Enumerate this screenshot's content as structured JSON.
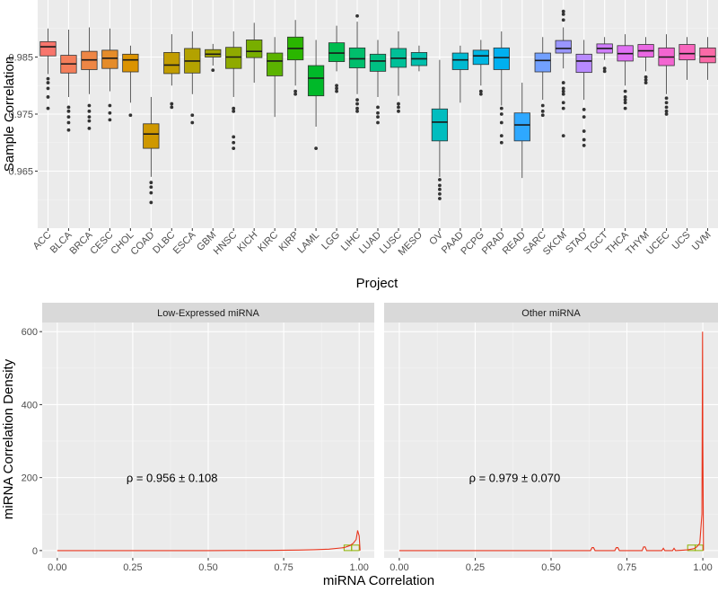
{
  "chart_data": [
    {
      "type": "boxplot",
      "title": "",
      "xlabel": "Project",
      "ylabel": "Sample Correlation",
      "ylim": [
        0.955,
        0.995
      ],
      "yticks": [
        0.965,
        0.975,
        0.985
      ],
      "ytick_labels": [
        "0.965",
        "0.975",
        "0.985"
      ],
      "grid": true,
      "legend": "none",
      "categories": [
        "ACC",
        "BLCA",
        "BRCA",
        "CESC",
        "CHOL",
        "COAD",
        "DLBC",
        "ESCA",
        "GBM",
        "HNSC",
        "KICH",
        "KIRC",
        "KIRP",
        "LAML",
        "LGG",
        "LIHC",
        "LUAD",
        "LUSC",
        "MESO",
        "OV",
        "PAAD",
        "PCPG",
        "PRAD",
        "READ",
        "SARC",
        "SKCM",
        "STAD",
        "TGCT",
        "THCA",
        "THYM",
        "UCEC",
        "UCS",
        "UVM"
      ],
      "colors": [
        "#F8766D",
        "#F47E5A",
        "#EE8645",
        "#E58C2A",
        "#DB9300",
        "#CF9800",
        "#C29D00",
        "#B3A200",
        "#A3A500",
        "#8FAA00",
        "#78AE00",
        "#5BB300",
        "#2AB600",
        "#00B929",
        "#00BC4F",
        "#00BE6C",
        "#00C083",
        "#00C098",
        "#00BFAC",
        "#00BDBF",
        "#00BAD1",
        "#00B6E2",
        "#00B0F0",
        "#2EA8FF",
        "#72A0FF",
        "#9A96FF",
        "#B88AFF",
        "#D07DFF",
        "#E070F4",
        "#EA68E3",
        "#F365D1",
        "#F866BD",
        "#FB6AA7"
      ],
      "boxes": [
        {
          "min": 0.982,
          "q1": 0.9852,
          "median": 0.9868,
          "q3": 0.9877,
          "max": 0.99,
          "outliers": [
            0.9812,
            0.9805,
            0.9795,
            0.978,
            0.976
          ]
        },
        {
          "min": 0.978,
          "q1": 0.9822,
          "median": 0.9838,
          "q3": 0.9853,
          "max": 0.9898,
          "outliers": [
            0.9762,
            0.9755,
            0.9745,
            0.9735,
            0.9722
          ]
        },
        {
          "min": 0.9785,
          "q1": 0.9828,
          "median": 0.9845,
          "q3": 0.986,
          "max": 0.9902,
          "outliers": [
            0.9765,
            0.9755,
            0.9745,
            0.9738,
            0.9725
          ]
        },
        {
          "min": 0.979,
          "q1": 0.983,
          "median": 0.9848,
          "q3": 0.9862,
          "max": 0.99,
          "outliers": [
            0.9765,
            0.9752,
            0.974
          ]
        },
        {
          "min": 0.977,
          "q1": 0.9824,
          "median": 0.9845,
          "q3": 0.9855,
          "max": 0.987,
          "outliers": [
            0.9748
          ]
        },
        {
          "min": 0.964,
          "q1": 0.969,
          "median": 0.9715,
          "q3": 0.9733,
          "max": 0.978,
          "outliers": [
            0.963,
            0.9622,
            0.9612,
            0.9595
          ]
        },
        {
          "min": 0.98,
          "q1": 0.9821,
          "median": 0.9836,
          "q3": 0.9858,
          "max": 0.989,
          "outliers": [
            0.9768,
            0.9762
          ]
        },
        {
          "min": 0.9785,
          "q1": 0.9822,
          "median": 0.9843,
          "q3": 0.9865,
          "max": 0.9895,
          "outliers": [
            0.9748,
            0.9735
          ]
        },
        {
          "min": 0.9835,
          "q1": 0.985,
          "median": 0.9855,
          "q3": 0.9863,
          "max": 0.9873,
          "outliers": [
            0.9827
          ]
        },
        {
          "min": 0.978,
          "q1": 0.983,
          "median": 0.985,
          "q3": 0.9867,
          "max": 0.9895,
          "outliers": [
            0.976,
            0.9755,
            0.971,
            0.97,
            0.969
          ]
        },
        {
          "min": 0.9805,
          "q1": 0.9849,
          "median": 0.986,
          "q3": 0.988,
          "max": 0.991,
          "outliers": []
        },
        {
          "min": 0.9745,
          "q1": 0.9817,
          "median": 0.9843,
          "q3": 0.9857,
          "max": 0.9885,
          "outliers": []
        },
        {
          "min": 0.98,
          "q1": 0.9845,
          "median": 0.9865,
          "q3": 0.9885,
          "max": 0.9915,
          "outliers": [
            0.979,
            0.9785
          ]
        },
        {
          "min": 0.9728,
          "q1": 0.9782,
          "median": 0.9813,
          "q3": 0.9835,
          "max": 0.988,
          "outliers": [
            0.969
          ]
        },
        {
          "min": 0.9825,
          "q1": 0.9842,
          "median": 0.9857,
          "q3": 0.9875,
          "max": 0.9905,
          "outliers": [
            0.98,
            0.9795,
            0.979
          ]
        },
        {
          "min": 0.9785,
          "q1": 0.9831,
          "median": 0.9847,
          "q3": 0.9866,
          "max": 0.9912,
          "outliers": [
            0.9775,
            0.9768,
            0.976,
            0.9755,
            0.9922
          ]
        },
        {
          "min": 0.978,
          "q1": 0.9825,
          "median": 0.9843,
          "q3": 0.9855,
          "max": 0.988,
          "outliers": [
            0.9762,
            0.9752,
            0.9745,
            0.9735
          ]
        },
        {
          "min": 0.9782,
          "q1": 0.9832,
          "median": 0.9848,
          "q3": 0.9865,
          "max": 0.9895,
          "outliers": [
            0.9768,
            0.9762,
            0.9755
          ]
        },
        {
          "min": 0.9825,
          "q1": 0.9835,
          "median": 0.9847,
          "q3": 0.9858,
          "max": 0.987,
          "outliers": []
        },
        {
          "min": 0.964,
          "q1": 0.9703,
          "median": 0.9736,
          "q3": 0.9759,
          "max": 0.9845,
          "outliers": [
            0.9635,
            0.9625,
            0.9618,
            0.961,
            0.9602
          ]
        },
        {
          "min": 0.977,
          "q1": 0.9828,
          "median": 0.9845,
          "q3": 0.9857,
          "max": 0.987,
          "outliers": []
        },
        {
          "min": 0.98,
          "q1": 0.9837,
          "median": 0.9852,
          "q3": 0.9862,
          "max": 0.988,
          "outliers": [
            0.979,
            0.9785
          ]
        },
        {
          "min": 0.9765,
          "q1": 0.9828,
          "median": 0.9849,
          "q3": 0.9866,
          "max": 0.9895,
          "outliers": [
            0.976,
            0.975,
            0.9735,
            0.9712,
            0.97
          ]
        },
        {
          "min": 0.9638,
          "q1": 0.9703,
          "median": 0.9731,
          "q3": 0.9752,
          "max": 0.9805,
          "outliers": []
        },
        {
          "min": 0.9775,
          "q1": 0.9824,
          "median": 0.9844,
          "q3": 0.9857,
          "max": 0.9885,
          "outliers": [
            0.9765,
            0.9755,
            0.9748
          ]
        },
        {
          "min": 0.983,
          "q1": 0.9857,
          "median": 0.9865,
          "q3": 0.9879,
          "max": 0.9902,
          "outliers": [
            0.9915,
            0.9925,
            0.993,
            0.9805,
            0.9795,
            0.979,
            0.9785,
            0.977,
            0.976,
            0.9712
          ]
        },
        {
          "min": 0.9775,
          "q1": 0.9823,
          "median": 0.9843,
          "q3": 0.9855,
          "max": 0.988,
          "outliers": [
            0.9758,
            0.9745,
            0.972,
            0.9705,
            0.9695
          ]
        },
        {
          "min": 0.9845,
          "q1": 0.9857,
          "median": 0.9865,
          "q3": 0.9873,
          "max": 0.9885,
          "outliers": [
            0.983,
            0.9825
          ]
        },
        {
          "min": 0.98,
          "q1": 0.9843,
          "median": 0.9856,
          "q3": 0.987,
          "max": 0.989,
          "outliers": [
            0.979,
            0.978,
            0.9775,
            0.977,
            0.976
          ]
        },
        {
          "min": 0.9825,
          "q1": 0.985,
          "median": 0.9861,
          "q3": 0.9872,
          "max": 0.9885,
          "outliers": [
            0.9815,
            0.981,
            0.9805
          ]
        },
        {
          "min": 0.9785,
          "q1": 0.9835,
          "median": 0.985,
          "q3": 0.9866,
          "max": 0.989,
          "outliers": [
            0.9778,
            0.977,
            0.9762,
            0.9755,
            0.975
          ]
        },
        {
          "min": 0.981,
          "q1": 0.9845,
          "median": 0.9856,
          "q3": 0.9872,
          "max": 0.9885,
          "outliers": []
        },
        {
          "min": 0.981,
          "q1": 0.984,
          "median": 0.9851,
          "q3": 0.9866,
          "max": 0.9885,
          "outliers": []
        }
      ]
    },
    {
      "type": "line",
      "subtype": "faceted-density",
      "xlabel": "miRNA Correlation",
      "ylabel": "miRNA Correlation Density",
      "xlim": [
        -0.05,
        1.05
      ],
      "ylim": [
        -20,
        625
      ],
      "xticks": [
        0,
        0.25,
        0.5,
        0.75,
        1
      ],
      "xtick_labels": [
        "0.00",
        "0.25",
        "0.50",
        "0.75",
        "1.00"
      ],
      "yticks": [
        0,
        200,
        400,
        600
      ],
      "ytick_labels": [
        "0",
        "200",
        "400",
        "600"
      ],
      "grid": true,
      "legend": "none",
      "line_color": "#E8341C",
      "hist_color": "#8CB200",
      "panels": [
        {
          "title": "Low-Expressed miRNA",
          "annotation": "ρ = 0.956 ± 0.108",
          "annotation_pos": [
            0.38,
            200
          ],
          "density": {
            "x": [
              0,
              0.5,
              0.7,
              0.8,
              0.85,
              0.9,
              0.95,
              0.97,
              0.98,
              0.99,
              0.995,
              1.0,
              1.003
            ],
            "y": [
              0,
              0,
              0.5,
              1.5,
              2.5,
              4,
              8,
              14,
              20,
              30,
              55,
              40,
              0
            ]
          },
          "histogram": [
            {
              "x0": 0.95,
              "x1": 0.975,
              "y": 15
            },
            {
              "x0": 0.975,
              "x1": 1.0,
              "y": 15
            }
          ]
        },
        {
          "title": "Other miRNA",
          "annotation": "ρ = 0.979 ± 0.070",
          "annotation_pos": [
            0.38,
            200
          ],
          "density": {
            "x": [
              0,
              0.63,
              0.635,
              0.64,
              0.645,
              0.71,
              0.715,
              0.72,
              0.725,
              0.8,
              0.805,
              0.81,
              0.815,
              0.865,
              0.87,
              0.875,
              0.9,
              0.905,
              0.91,
              0.95,
              0.97,
              0.98,
              0.99,
              0.997,
              0.999,
              1.0,
              1.002
            ],
            "y": [
              0,
              0,
              8,
              8,
              0,
              0,
              8,
              8,
              0,
              0,
              10,
              10,
              0,
              0,
              6,
              0,
              0,
              6,
              0,
              2,
              5,
              10,
              20,
              100,
              600,
              300,
              0
            ]
          },
          "histogram": [
            {
              "x0": 0.95,
              "x1": 0.975,
              "y": 15
            },
            {
              "x0": 0.975,
              "x1": 1.0,
              "y": 15
            }
          ]
        }
      ]
    }
  ]
}
